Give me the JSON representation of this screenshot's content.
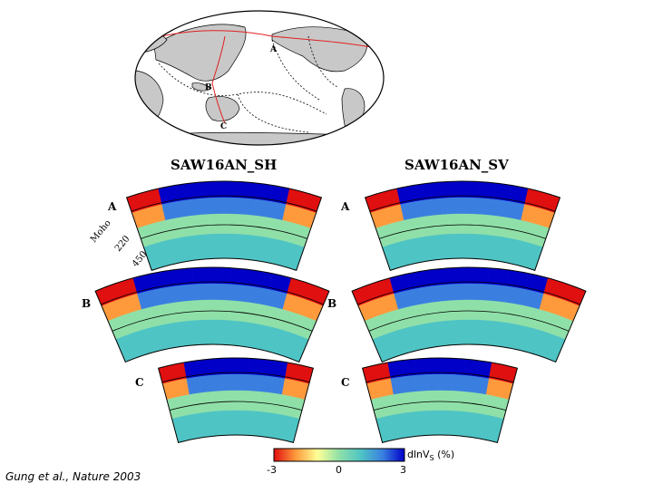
{
  "map": {
    "point_labels": [
      "A",
      "B",
      "C"
    ],
    "colors": {
      "land": "#c8c8c8",
      "ocean": "#ffffff",
      "path": "#e02020"
    }
  },
  "panels": {
    "left_title": "SAW16AN_SH",
    "right_title": "SAW16AN_SV",
    "section_labels": [
      "A",
      "B",
      "C"
    ]
  },
  "depth_labels": {
    "moho": "Moho",
    "d220": "220",
    "d450": "450"
  },
  "colorbar": {
    "ticks": [
      "-3",
      "0",
      "3"
    ],
    "unit_main": "dlnV",
    "unit_sub": "S",
    "unit_tail": " (%)",
    "colors": [
      "#e01010",
      "#ff9a3c",
      "#ffff96",
      "#8fe0a8",
      "#4fc4c4",
      "#3a7fe0",
      "#0000c8"
    ]
  },
  "citation": "Gung et al., Nature 2003"
}
